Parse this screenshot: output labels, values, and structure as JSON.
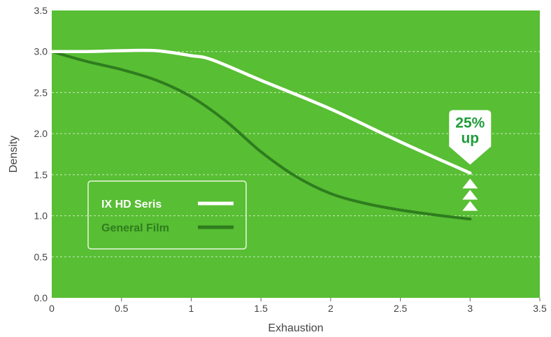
{
  "chart_data": {
    "type": "line",
    "title": "",
    "xlabel": "Exhaustion",
    "ylabel": "Density",
    "xlim": [
      0,
      3.5
    ],
    "ylim": [
      0,
      3.5
    ],
    "x_ticks": [
      "0",
      "0.5",
      "1",
      "1.5",
      "2",
      "2.5",
      "3",
      "3.5"
    ],
    "y_ticks": [
      "0.0",
      "0.5",
      "1.0",
      "1.5",
      "2.0",
      "2.5",
      "3.0",
      "3.5"
    ],
    "grid": "horizontal dashed",
    "legend_position": "lower-left",
    "series": [
      {
        "name": "IX HD Seris",
        "color": "#ffffff",
        "x": [
          0,
          0.25,
          0.5,
          0.75,
          1.0,
          1.15,
          1.5,
          2.0,
          2.5,
          3.0
        ],
        "y": [
          3.0,
          3.0,
          3.01,
          3.01,
          2.95,
          2.9,
          2.65,
          2.3,
          1.9,
          1.52
        ]
      },
      {
        "name": "General Film",
        "color": "#2e7d1e",
        "x": [
          0,
          0.25,
          0.5,
          0.75,
          1.0,
          1.25,
          1.5,
          1.75,
          2.0,
          2.25,
          2.5,
          2.75,
          3.0
        ],
        "y": [
          3.0,
          2.88,
          2.78,
          2.65,
          2.45,
          2.15,
          1.78,
          1.48,
          1.27,
          1.15,
          1.07,
          1.01,
          0.96
        ]
      }
    ],
    "annotation": {
      "line1": "25%",
      "line2": "up",
      "x": 3.0,
      "y": 1.52,
      "arrow_count": 3,
      "color": "#1f9d3a"
    },
    "colors": {
      "plot_background": "#58be34",
      "grid": "#c9eab9",
      "axis_text": "#444444",
      "legend_border": "#e9f7e1"
    }
  }
}
